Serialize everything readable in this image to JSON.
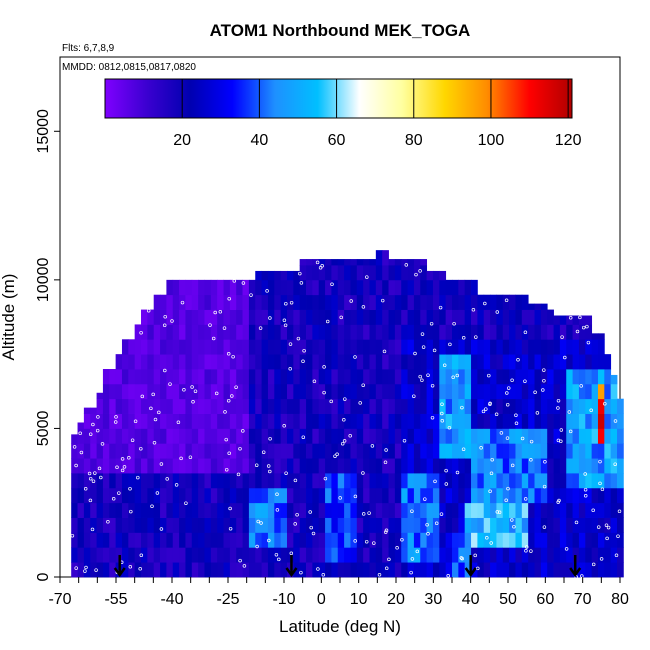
{
  "chart_data": {
    "type": "heatmap",
    "title": "ATOM1 Northbound MEK_TOGA",
    "subtitle": "Flts: 6,7,8,9",
    "annotation": "MMDD: 0812,0815,0817,0820",
    "xlabel": "Latitude (deg N)",
    "ylabel": "Altitude (m)",
    "xlim": [
      -70,
      80
    ],
    "ylim": [
      0,
      17500
    ],
    "x_ticks": [
      "-70",
      "-55",
      "-40",
      "-25",
      "-10",
      "0",
      "10",
      "20",
      "30",
      "40",
      "50",
      "60",
      "70",
      "80"
    ],
    "y_ticks": [
      "0",
      "5000",
      "10000",
      "15000"
    ],
    "colorbar": {
      "range": [
        0,
        121
      ],
      "ticks": [
        "20",
        "40",
        "60",
        "80",
        "100",
        "120"
      ],
      "colors": [
        "#7f00ff",
        "#3a00d0",
        "#0000b0",
        "#0000ff",
        "#1e90ff",
        "#00bfff",
        "#ffffff",
        "#ffffa0",
        "#ffd700",
        "#ff8c00",
        "#ff0000",
        "#b00000"
      ]
    },
    "altitude_bins_m": [
      0,
      500,
      1000,
      1500,
      2000,
      2500,
      3000,
      3500,
      4000,
      4500,
      5000,
      5500,
      6000,
      6500,
      7000,
      7500,
      8000,
      8500,
      9000,
      9500,
      10000,
      10500,
      11000
    ],
    "profile_top_altitude_m": [
      [
        -67,
        4800
      ],
      [
        -65,
        5200
      ],
      [
        -63,
        5700
      ],
      [
        -60,
        6200
      ],
      [
        -58,
        7000
      ],
      [
        -55,
        7500
      ],
      [
        -53,
        8000
      ],
      [
        -50,
        8500
      ],
      [
        -48,
        9000
      ],
      [
        -45,
        9500
      ],
      [
        -42,
        10000
      ],
      [
        -20,
        10000
      ],
      [
        -18,
        10300
      ],
      [
        -7,
        10300
      ],
      [
        -5,
        10700
      ],
      [
        13,
        10700
      ],
      [
        15,
        11000
      ],
      [
        18,
        10700
      ],
      [
        28,
        10300
      ],
      [
        33,
        10000
      ],
      [
        40,
        10000
      ],
      [
        42,
        9500
      ],
      [
        52,
        9500
      ],
      [
        55,
        9200
      ],
      [
        60,
        9000
      ],
      [
        63,
        8800
      ],
      [
        70,
        8800
      ],
      [
        72,
        8200
      ],
      [
        75,
        7500
      ],
      [
        78,
        6800
      ],
      [
        80,
        6000
      ]
    ],
    "enhanced_regions": [
      {
        "lat": [
          -20,
          -10
        ],
        "alt": [
          1000,
          3000
        ],
        "level": 45
      },
      {
        "lat": [
          0,
          8
        ],
        "alt": [
          500,
          3500
        ],
        "level": 40
      },
      {
        "lat": [
          20,
          30
        ],
        "alt": [
          500,
          3500
        ],
        "level": 45
      },
      {
        "lat": [
          30,
          40
        ],
        "alt": [
          4000,
          7500
        ],
        "level": 50
      },
      {
        "lat": [
          38,
          55
        ],
        "alt": [
          1000,
          2500
        ],
        "level": 55
      },
      {
        "lat": [
          40,
          60
        ],
        "alt": [
          2500,
          5000
        ],
        "level": 45
      },
      {
        "lat": [
          65,
          80
        ],
        "alt": [
          3000,
          7000
        ],
        "level": 50
      },
      {
        "lat": [
          73,
          75
        ],
        "alt": [
          4500,
          6500
        ],
        "level": 115
      },
      {
        "lat": [
          35,
          40
        ],
        "alt": [
          0,
          1500
        ],
        "level": 40
      }
    ],
    "arrow_latitudes": [
      -54,
      -8,
      40,
      68
    ]
  }
}
